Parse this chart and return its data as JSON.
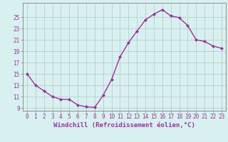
{
  "x": [
    0,
    1,
    2,
    3,
    4,
    5,
    6,
    7,
    8,
    9,
    10,
    11,
    12,
    13,
    14,
    15,
    16,
    17,
    18,
    19,
    20,
    21,
    22,
    23
  ],
  "y": [
    15,
    13,
    12,
    11,
    10.5,
    10.5,
    9.5,
    9.2,
    9.1,
    11.2,
    14,
    18,
    20.5,
    22.5,
    24.5,
    25.5,
    26.3,
    25.2,
    24.9,
    23.5,
    21,
    20.7,
    19.9,
    19.5
  ],
  "line_color": "#993399",
  "marker": "D",
  "marker_size": 2.0,
  "linewidth": 1.0,
  "xlabel": "Windchill (Refroidissement éolien,°C)",
  "xlabel_fontsize": 6.5,
  "ylim": [
    8.5,
    27.5
  ],
  "xlim": [
    -0.5,
    23.5
  ],
  "yticks": [
    9,
    11,
    13,
    15,
    17,
    19,
    21,
    23,
    25
  ],
  "xticks": [
    0,
    1,
    2,
    3,
    4,
    5,
    6,
    7,
    8,
    9,
    10,
    11,
    12,
    13,
    14,
    15,
    16,
    17,
    18,
    19,
    20,
    21,
    22,
    23
  ],
  "background_color": "#d8f0f0",
  "grid_color": "#b0c8c8",
  "tick_fontsize": 5.5,
  "fig_bg": "#d8f0f0",
  "spine_color": "#808080"
}
